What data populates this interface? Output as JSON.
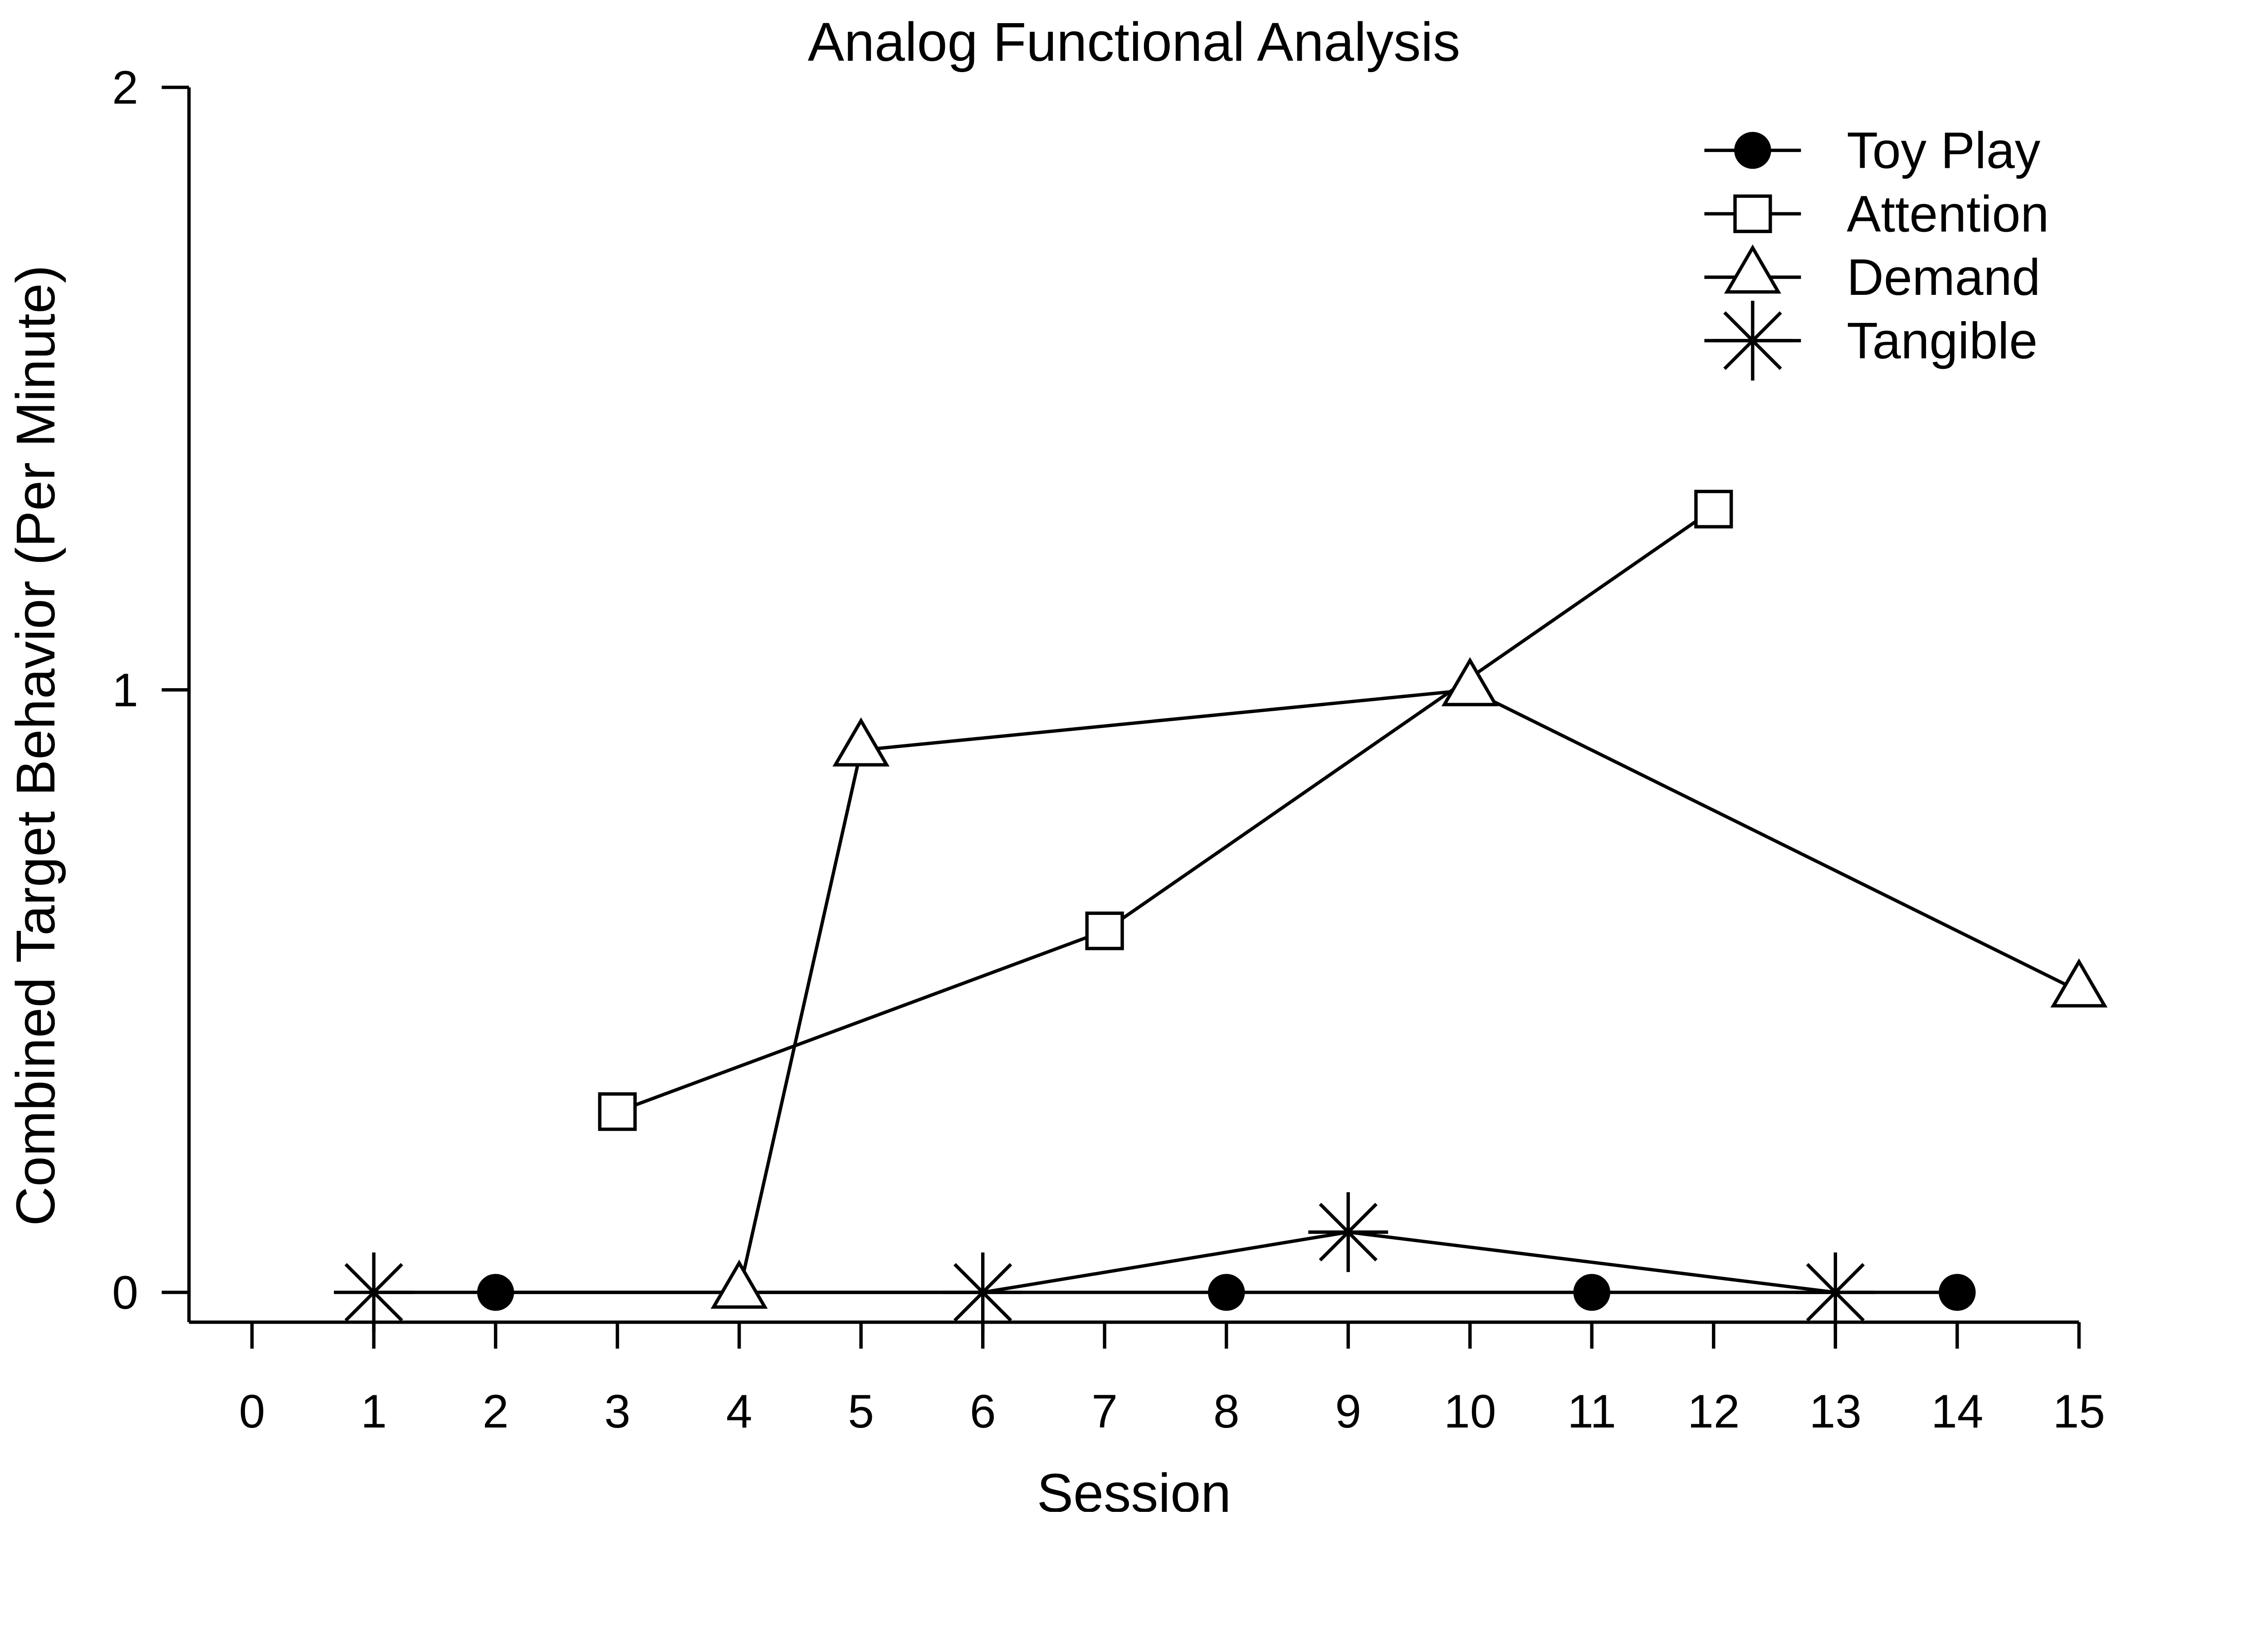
{
  "chart_data": {
    "type": "line",
    "title": "Analog Functional Analysis",
    "xlabel": "Session",
    "ylabel": "Combined Target Behavior (Per Minute)",
    "background_color": "#ffffff",
    "foreground_color": "#000000",
    "grid": false,
    "legend_position": "top-right",
    "x_axis": {
      "min": 0,
      "max": 15,
      "ticks": [
        0,
        1,
        2,
        3,
        4,
        5,
        6,
        7,
        8,
        9,
        10,
        11,
        12,
        13,
        14,
        15
      ]
    },
    "y_axis": {
      "min": 0,
      "max": 2,
      "ticks": [
        0,
        1,
        2
      ]
    },
    "series": [
      {
        "name": "Toy Play",
        "marker": "filled-circle",
        "line_style": "solid",
        "x": [
          2,
          8,
          11,
          14
        ],
        "y": [
          0,
          0,
          0,
          0
        ]
      },
      {
        "name": "Attention",
        "marker": "open-square",
        "line_style": "solid",
        "x": [
          3,
          7,
          12
        ],
        "y": [
          0.3,
          0.6,
          1.3
        ]
      },
      {
        "name": "Demand",
        "marker": "open-triangle",
        "line_style": "solid",
        "x": [
          4,
          5,
          10,
          15
        ],
        "y": [
          0,
          0.9,
          1.0,
          0.5
        ]
      },
      {
        "name": "Tangible",
        "marker": "asterisk",
        "line_style": "solid",
        "x": [
          1,
          6,
          9,
          13
        ],
        "y": [
          0,
          0,
          0.1,
          0
        ]
      }
    ]
  }
}
